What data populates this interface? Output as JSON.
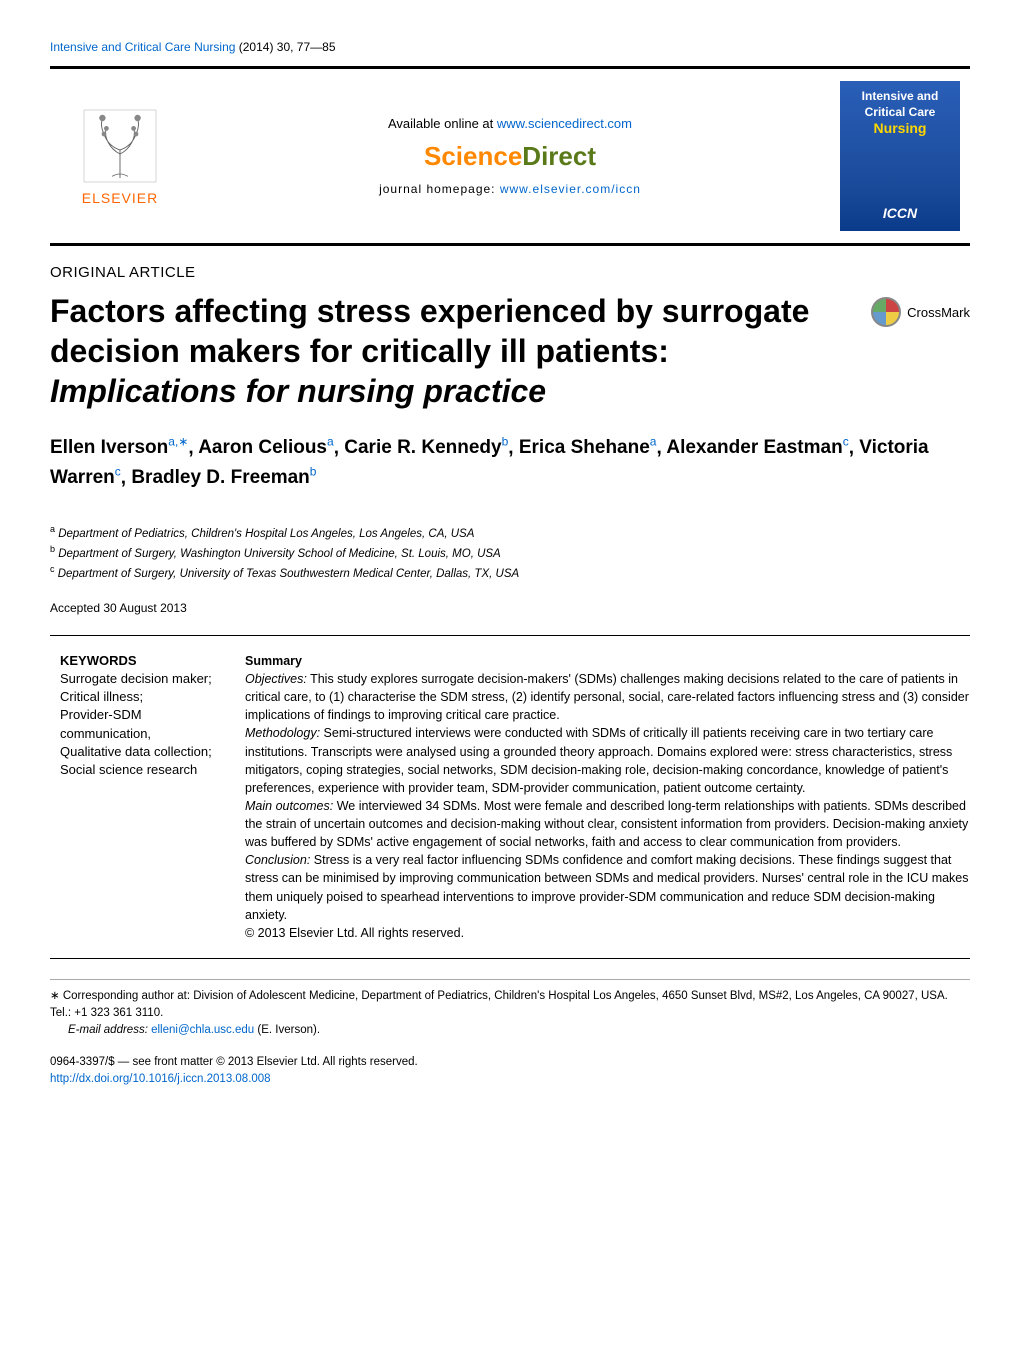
{
  "journal_ref": {
    "journal_link_text": "Intensive and Critical Care Nursing",
    "citation": " (2014) 30, 77—85"
  },
  "header": {
    "available_pre": "Available online at ",
    "available_link": "www.sciencedirect.com",
    "brand_science": "Science",
    "brand_direct": "Direct",
    "homepage_pre": "journal homepage: ",
    "homepage_link": "www.elsevier.com/iccn",
    "publisher_name": "ELSEVIER",
    "cover_line1": "Intensive and",
    "cover_line2": "Critical Care",
    "cover_line3": "Nursing",
    "cover_iccn": "ICCN"
  },
  "article_type": "ORIGINAL ARTICLE",
  "title_plain": "Factors affecting stress experienced by surrogate decision makers for critically ill patients: ",
  "title_italic": "Implications for nursing practice",
  "crossmark_label": "CrossMark",
  "authors": [
    {
      "name": "Ellen Iverson",
      "sup": "a,∗"
    },
    {
      "name": "Aaron Celious",
      "sup": "a"
    },
    {
      "name": "Carie R. Kennedy",
      "sup": "b"
    },
    {
      "name": "Erica Shehane",
      "sup": "a"
    },
    {
      "name": "Alexander Eastman",
      "sup": "c"
    },
    {
      "name": "Victoria Warren",
      "sup": "c"
    },
    {
      "name": "Bradley D. Freeman",
      "sup": "b"
    }
  ],
  "affiliations": [
    {
      "sup": "a",
      "text": " Department of Pediatrics, Children's Hospital Los Angeles, Los Angeles, CA, USA"
    },
    {
      "sup": "b",
      "text": " Department of Surgery, Washington University School of Medicine, St. Louis, MO, USA"
    },
    {
      "sup": "c",
      "text": " Department of Surgery, University of Texas Southwestern Medical Center, Dallas, TX, USA"
    }
  ],
  "accepted": "Accepted 30 August 2013",
  "keywords": {
    "heading": "KEYWORDS",
    "body": "Surrogate decision maker;\nCritical illness;\nProvider-SDM communication,\nQualitative data collection;\nSocial science research"
  },
  "summary": {
    "heading": "Summary",
    "objectives_label": "Objectives:",
    "objectives_text": " This study explores surrogate decision-makers' (SDMs) challenges making decisions related to the care of patients in critical care, to (1) characterise the SDM stress, (2) identify personal, social, care-related factors influencing stress and (3) consider implications of findings to improving critical care practice.",
    "methodology_label": "Methodology:",
    "methodology_text": " Semi-structured interviews were conducted with SDMs of critically ill patients receiving care in two tertiary care institutions. Transcripts were analysed using a grounded theory approach. Domains explored were: stress characteristics, stress mitigators, coping strategies, social networks, SDM decision-making role, decision-making concordance, knowledge of patient's preferences, experience with provider team, SDM-provider communication, patient outcome certainty.",
    "outcomes_label": "Main outcomes:",
    "outcomes_text": " We interviewed 34 SDMs. Most were female and described long-term relationships with patients. SDMs described the strain of uncertain outcomes and decision-making without clear, consistent information from providers. Decision-making anxiety was buffered by SDMs' active engagement of social networks, faith and access to clear communication from providers.",
    "conclusion_label": "Conclusion:",
    "conclusion_text": " Stress is a very real factor influencing SDMs confidence and comfort making decisions. These findings suggest that stress can be minimised by improving communication between SDMs and medical providers. Nurses' central role in the ICU makes them uniquely poised to spearhead interventions to improve provider-SDM communication and reduce SDM decision-making anxiety.",
    "copyright": "© 2013 Elsevier Ltd. All rights reserved."
  },
  "footnotes": {
    "corresp_marker": "∗",
    "corresp_text": " Corresponding author at: Division of Adolescent Medicine, Department of Pediatrics, Children's Hospital Los Angeles, 4650 Sunset Blvd, MS#2, Los Angeles, CA 90027, USA. Tel.: +1 323 361 3110.",
    "email_label": "E-mail address: ",
    "email_addr": "elleni@chla.usc.edu",
    "email_tail": " (E. Iverson)."
  },
  "pub_info": {
    "line1": "0964-3397/$ — see front matter © 2013 Elsevier Ltd. All rights reserved.",
    "doi": "http://dx.doi.org/10.1016/j.iccn.2013.08.008"
  },
  "colors": {
    "link": "#0066cc",
    "orange": "#ff8800",
    "olive": "#5a7a1a",
    "cover_blue_top": "#2a5fb8",
    "cover_blue_bottom": "#0a3a8a",
    "cover_yellow": "#ffd700"
  }
}
